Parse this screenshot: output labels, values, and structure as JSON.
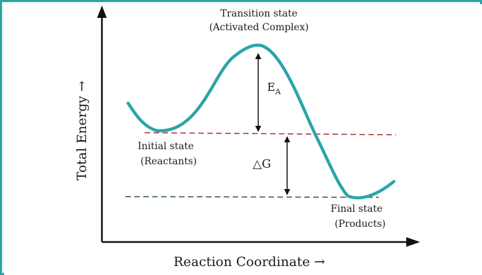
{
  "diagram": {
    "title_line1": "Transition state",
    "title_line2": "(Activated Complex)",
    "ea_main": "E",
    "ea_sub": "A",
    "delta_g": "△G",
    "initial_line1": "Initial state",
    "initial_line2": "(Reactants)",
    "final_line1": "Final state",
    "final_line2": "(Products)",
    "y_axis_label": "Total Energy →",
    "x_axis_label": "Reaction Coordinate →",
    "colors": {
      "curve": "#2aa5a8",
      "reactant_level": "#a83232",
      "product_level": "#2f5d2f",
      "axis": "#111111",
      "border": "#2aa5a8"
    }
  }
}
